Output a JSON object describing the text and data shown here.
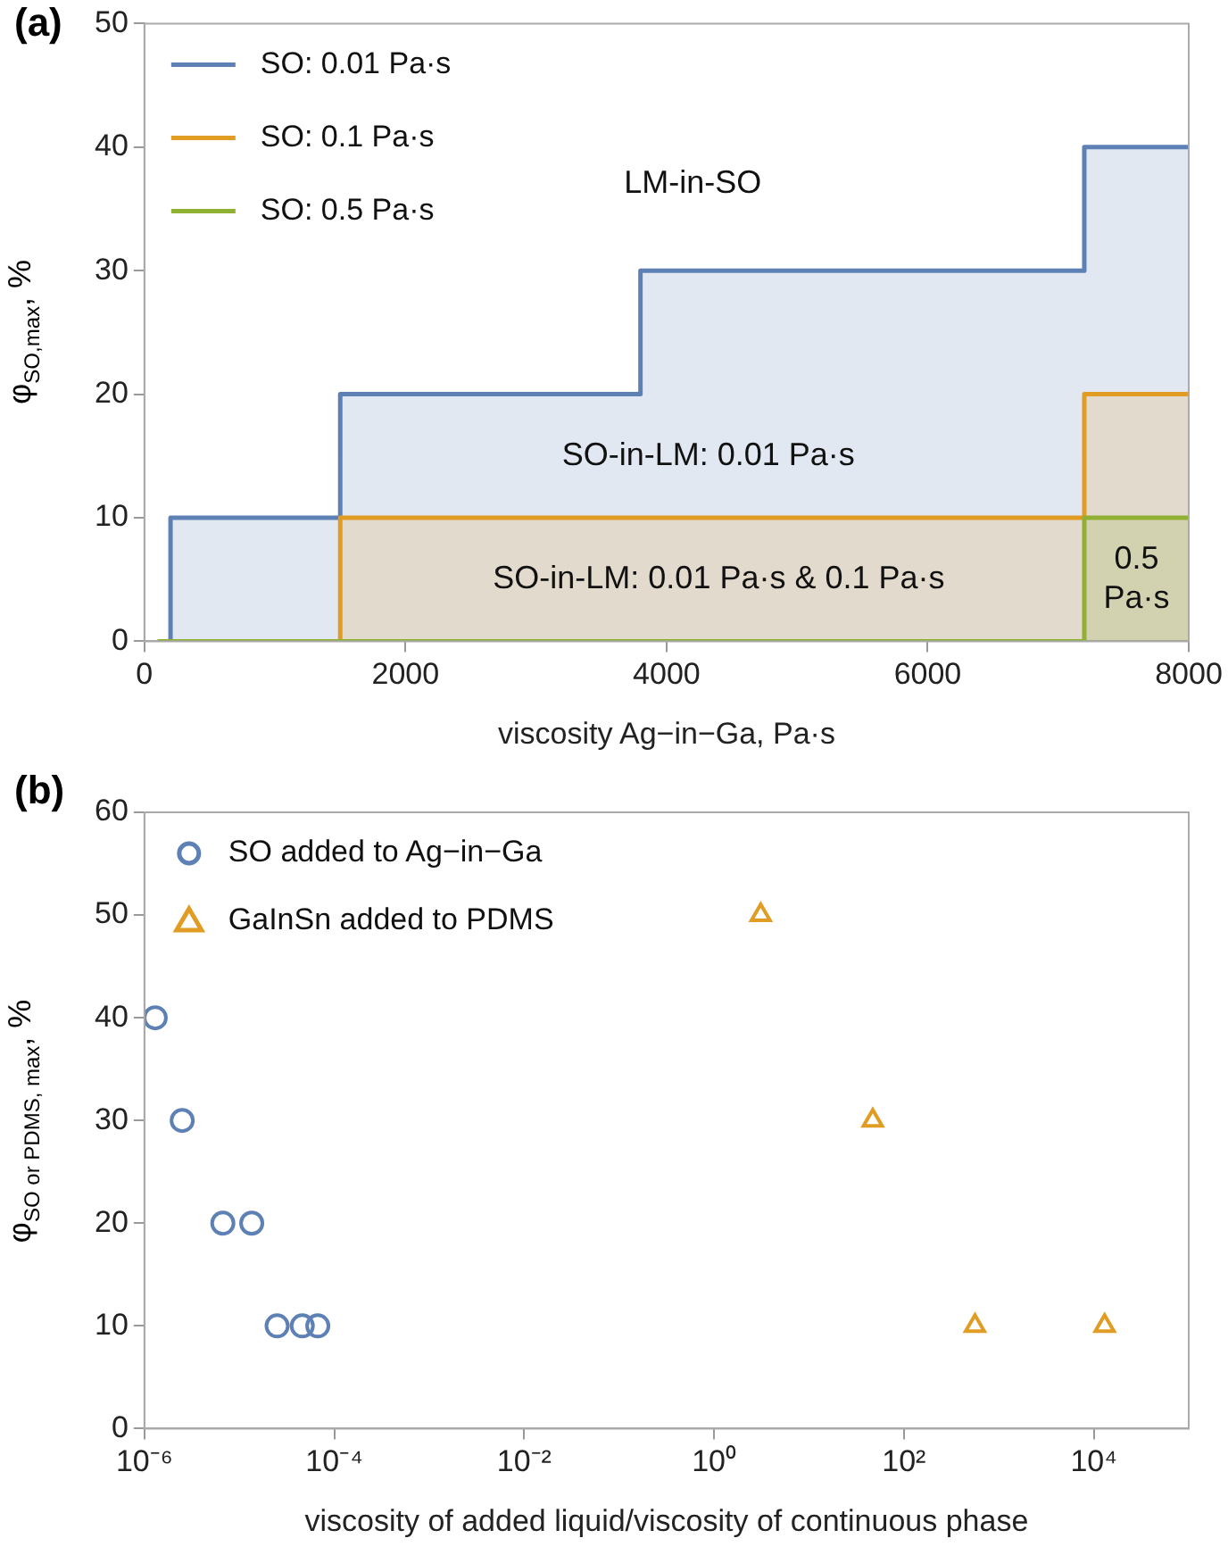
{
  "chart_data": [
    {
      "type": "area",
      "title": "(a)",
      "xlabel": "viscosity Ag−in−Ga, Pa·s",
      "ylabel": "φ$_{SO,max}$, %",
      "xlim": [
        0,
        8000
      ],
      "xticks": [
        0,
        2000,
        4000,
        6000,
        8000
      ],
      "ylim": [
        0,
        50
      ],
      "yticks": [
        0,
        10,
        20,
        30,
        40,
        50
      ],
      "grid": false,
      "legend": "top left",
      "series": [
        {
          "name": "SO: 0.01 Pa·s",
          "color": "#5e81b5",
          "x": [
            200,
            200,
            1500,
            1500,
            3800,
            3800,
            7200,
            7200,
            8000
          ],
          "values": [
            0,
            10,
            10,
            20,
            20,
            30,
            30,
            40,
            40
          ]
        },
        {
          "name": "SO: 0.1 Pa·s",
          "color": "#e19c24",
          "x": [
            1500,
            1500,
            7200,
            7200,
            8000
          ],
          "values": [
            0,
            10,
            10,
            20,
            20
          ]
        },
        {
          "name": "SO: 0.5 Pa·s",
          "color": "#8fb032",
          "x": [
            100,
            7200,
            7200,
            8000
          ],
          "values": [
            0,
            0,
            10,
            10
          ]
        }
      ],
      "annotations": [
        "LM-in-SO",
        "SO-in-LM: 0.01 Pa·s",
        "SO-in-LM: 0.01 Pa·s & 0.1 Pa·s",
        "0.5 Pa·s"
      ]
    },
    {
      "type": "scatter",
      "title": "(b)",
      "xlabel": "viscosity of added liquid/viscosity of continuous phase",
      "ylabel": "φ$_{SO or PDMS, max}$, %",
      "log": "x",
      "xlim": [
        1e-06,
        100000
      ],
      "xticks": [
        {
          "value": 1e-06,
          "label": "10⁻⁶"
        },
        {
          "value": 0.0001,
          "label": "10⁻⁴"
        },
        {
          "value": 0.01,
          "label": "10⁻²"
        },
        {
          "value": 1,
          "label": "10⁰"
        },
        {
          "value": 100,
          "label": "10²"
        },
        {
          "value": 10000,
          "label": "10⁴"
        }
      ],
      "ylim": [
        0,
        60
      ],
      "yticks": [
        0,
        10,
        20,
        30,
        40,
        50,
        60
      ],
      "grid": false,
      "legend": "top left",
      "series": [
        {
          "name": "SO added to Ag−in−Ga",
          "color": "#5e81b5",
          "marker": "circle",
          "x": [
            1.3e-06,
            2.5e-06,
            6.7e-06,
            1.35e-05,
            2.5e-05,
            4.6e-05,
            6.7e-05
          ],
          "values": [
            40,
            30,
            20,
            20,
            10,
            10,
            10
          ]
        },
        {
          "name": "GaInSn added to PDMS",
          "color": "#e19c24",
          "marker": "triangle",
          "x": [
            3.1,
            47,
            560,
            13000
          ],
          "values": [
            50,
            30,
            10,
            10
          ]
        }
      ]
    }
  ]
}
